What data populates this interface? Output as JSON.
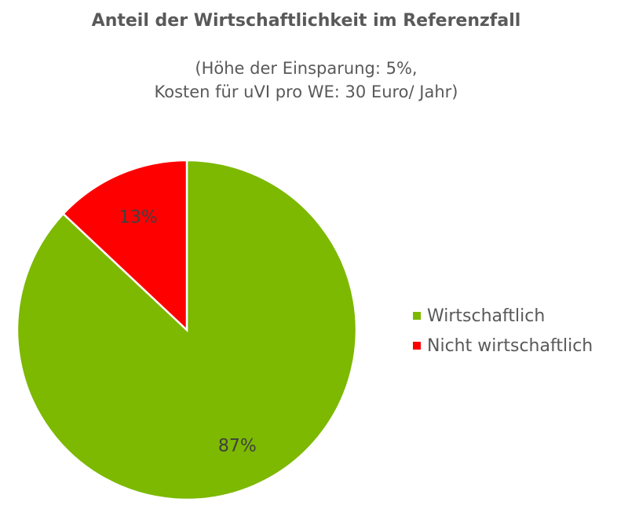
{
  "chart_data": {
    "type": "pie",
    "title": "Anteil der Wirtschaftlichkeit im Referenzfall",
    "subtitle_lines": [
      "(Höhe der Einsparung: 5%,",
      "Kosten für uVI pro WE: 30 Euro/ Jahr)"
    ],
    "legend_position": "right",
    "slices": [
      {
        "name": "Wirtschaftlich",
        "value": 87,
        "label": "87%",
        "color": "#7cb900"
      },
      {
        "name": "Nicht wirtschaftlich",
        "value": 13,
        "label": "13%",
        "color": "#ff0000"
      }
    ]
  }
}
